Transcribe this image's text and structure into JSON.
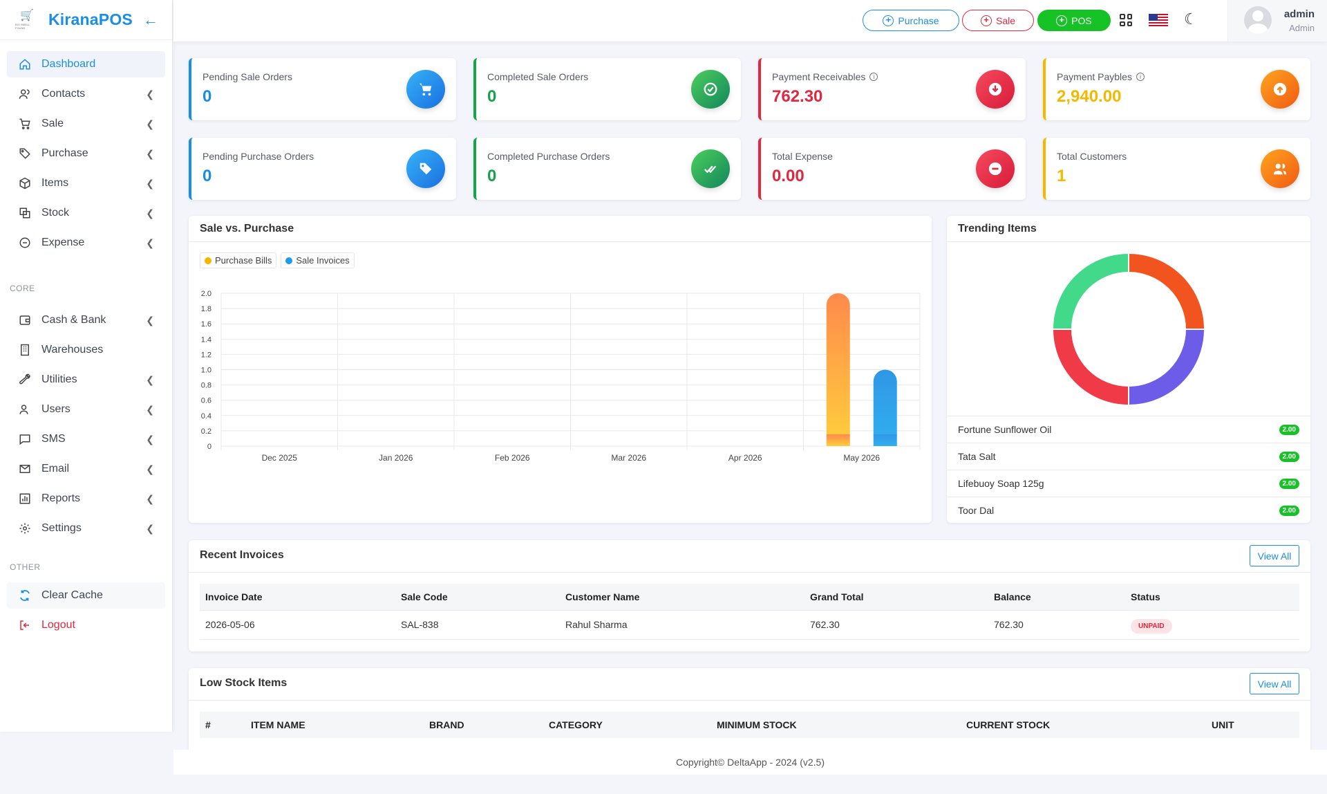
{
  "brand": {
    "name": "KiranaPOS",
    "logo_text": "BIG SMALL FOUND"
  },
  "sidebar": {
    "items": [
      {
        "label": "Dashboard"
      },
      {
        "label": "Contacts"
      },
      {
        "label": "Sale"
      },
      {
        "label": "Purchase"
      },
      {
        "label": "Items"
      },
      {
        "label": "Stock"
      },
      {
        "label": "Expense"
      }
    ],
    "core_label": "CORE",
    "core_items": [
      {
        "label": "Cash & Bank"
      },
      {
        "label": "Warehouses"
      },
      {
        "label": "Utilities"
      },
      {
        "label": "Users"
      },
      {
        "label": "SMS"
      },
      {
        "label": "Email"
      },
      {
        "label": "Reports"
      },
      {
        "label": "Settings"
      }
    ],
    "other_label": "OTHER",
    "other_items": [
      {
        "label": "Clear Cache"
      },
      {
        "label": "Logout"
      }
    ]
  },
  "topbar": {
    "purchase_label": "Purchase",
    "sale_label": "Sale",
    "pos_label": "POS",
    "user_name": "admin",
    "user_role": "Admin"
  },
  "stats": [
    {
      "label": "Pending Sale Orders",
      "value": "0",
      "color": "#1a8ee5"
    },
    {
      "label": "Completed Sale Orders",
      "value": "0",
      "color": "#16a34a"
    },
    {
      "label": "Payment Receivables",
      "value": "762.30",
      "color": "#e0283f"
    },
    {
      "label": "Payment Paybles",
      "value": "2,940.00",
      "color": "#f5b800"
    },
    {
      "label": "Pending Purchase Orders",
      "value": "0",
      "color": "#1a8ee5"
    },
    {
      "label": "Completed Purchase Orders",
      "value": "0",
      "color": "#16a34a"
    },
    {
      "label": "Total Expense",
      "value": "0.00",
      "color": "#e0283f"
    },
    {
      "label": "Total Customers",
      "value": "1",
      "color": "#f5b800"
    }
  ],
  "sale_vs_purchase": {
    "title": "Sale vs. Purchase",
    "chart_data": {
      "type": "bar",
      "categories": [
        "Dec 2025",
        "Jan 2026",
        "Feb 2026",
        "Mar 2026",
        "Apr 2026",
        "May 2026"
      ],
      "series": [
        {
          "name": "Purchase Bills",
          "values": [
            0,
            0,
            0,
            0,
            0,
            2
          ],
          "color": "#f7b500"
        },
        {
          "name": "Sale Invoices",
          "values": [
            0,
            0,
            0,
            0,
            0,
            1
          ],
          "color": "#1e9be8"
        }
      ],
      "yticks": [
        "0",
        "0.2",
        "0.4",
        "0.6",
        "0.8",
        "1.0",
        "1.2",
        "1.4",
        "1.6",
        "1.8",
        "2.0"
      ],
      "ylim": [
        0,
        2
      ],
      "legend": "top-left"
    }
  },
  "trending": {
    "title": "Trending Items",
    "chart_data": {
      "type": "pie",
      "labels": [
        "Fortune Sunflower Oil",
        "Tata Salt",
        "Lifebuoy Soap 125g",
        "Toor Dal"
      ],
      "values": [
        2,
        2,
        2,
        2
      ],
      "colors": [
        "#f2541f",
        "#6c5ce7",
        "#f03a47",
        "#43d98b"
      ]
    },
    "items": [
      {
        "name": "Fortune Sunflower Oil",
        "qty": "2.00"
      },
      {
        "name": "Tata Salt",
        "qty": "2.00"
      },
      {
        "name": "Lifebuoy Soap 125g",
        "qty": "2.00"
      },
      {
        "name": "Toor Dal",
        "qty": "2.00"
      }
    ]
  },
  "recent_invoices": {
    "title": "Recent Invoices",
    "view_all": "View All",
    "columns": [
      "Invoice Date",
      "Sale Code",
      "Customer Name",
      "Grand Total",
      "Balance",
      "Status"
    ],
    "rows": [
      {
        "date": "2026-05-06",
        "code": "SAL-838",
        "customer": "Rahul Sharma",
        "total": "762.30",
        "balance": "762.30",
        "status": "UNPAID"
      }
    ]
  },
  "low_stock": {
    "title": "Low Stock Items",
    "view_all": "View All",
    "columns": [
      "#",
      "ITEM NAME",
      "BRAND",
      "CATEGORY",
      "MINIMUM STOCK",
      "CURRENT STOCK",
      "UNIT"
    ]
  },
  "footer": {
    "text": "Copyright© DeltaApp - 2024 (v2.5)"
  }
}
